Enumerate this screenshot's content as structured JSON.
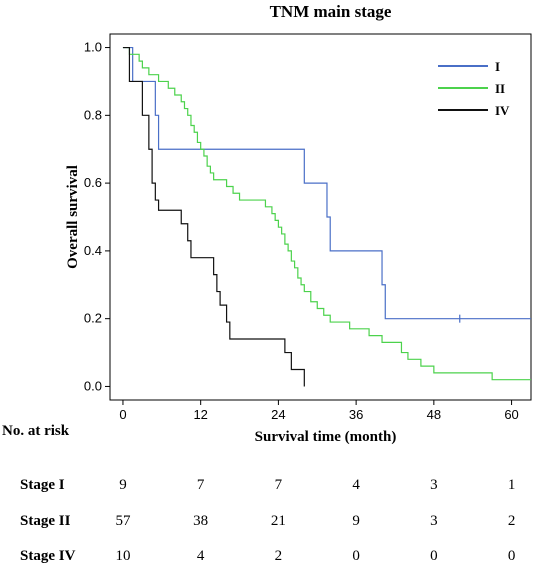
{
  "chart_data": {
    "type": "line",
    "subtype": "kaplan-meier",
    "title": "TNM main stage",
    "xlabel": "Survival time (month)",
    "ylabel": "Overall survival",
    "xlim": [
      -2,
      63
    ],
    "ylim": [
      -0.04,
      1.04
    ],
    "xticks": [
      0,
      12,
      24,
      36,
      48,
      60
    ],
    "yticks": [
      0.0,
      0.2,
      0.4,
      0.6,
      0.8,
      1.0
    ],
    "grid": false,
    "legend_position": "top-right",
    "series": [
      {
        "name": "I",
        "color": "#4a6fc7",
        "steps": [
          [
            0,
            1.0
          ],
          [
            1.5,
            0.9
          ],
          [
            5,
            0.8
          ],
          [
            5.5,
            0.7
          ],
          [
            28,
            0.6
          ],
          [
            31.5,
            0.5
          ],
          [
            32,
            0.4
          ],
          [
            40,
            0.3
          ],
          [
            40.5,
            0.2
          ],
          [
            63,
            0.2
          ]
        ],
        "censored": [
          [
            52,
            0.2
          ]
        ]
      },
      {
        "name": "II",
        "color": "#4cd24c",
        "steps": [
          [
            0,
            1.0
          ],
          [
            1,
            0.98
          ],
          [
            2.5,
            0.96
          ],
          [
            3,
            0.94
          ],
          [
            4,
            0.92
          ],
          [
            5.5,
            0.9
          ],
          [
            7,
            0.88
          ],
          [
            8,
            0.86
          ],
          [
            9,
            0.84
          ],
          [
            9.5,
            0.82
          ],
          [
            10,
            0.8
          ],
          [
            10.5,
            0.77
          ],
          [
            11,
            0.75
          ],
          [
            11.5,
            0.72
          ],
          [
            12,
            0.7
          ],
          [
            12.5,
            0.68
          ],
          [
            13,
            0.65
          ],
          [
            13.5,
            0.63
          ],
          [
            14,
            0.61
          ],
          [
            16,
            0.59
          ],
          [
            17,
            0.57
          ],
          [
            18,
            0.55
          ],
          [
            22,
            0.53
          ],
          [
            23,
            0.51
          ],
          [
            23.5,
            0.49
          ],
          [
            24,
            0.47
          ],
          [
            24.5,
            0.45
          ],
          [
            25,
            0.42
          ],
          [
            25.5,
            0.4
          ],
          [
            26,
            0.37
          ],
          [
            26.5,
            0.35
          ],
          [
            27,
            0.32
          ],
          [
            27.5,
            0.3
          ],
          [
            28,
            0.28
          ],
          [
            29,
            0.25
          ],
          [
            30,
            0.23
          ],
          [
            31,
            0.21
          ],
          [
            32,
            0.19
          ],
          [
            35,
            0.17
          ],
          [
            38,
            0.15
          ],
          [
            40,
            0.13
          ],
          [
            43,
            0.1
          ],
          [
            44,
            0.08
          ],
          [
            46,
            0.06
          ],
          [
            48,
            0.04
          ],
          [
            57,
            0.02
          ],
          [
            63,
            0.02
          ]
        ],
        "censored": []
      },
      {
        "name": "IV",
        "color": "#111111",
        "steps": [
          [
            0,
            1.0
          ],
          [
            1,
            0.9
          ],
          [
            3,
            0.8
          ],
          [
            4,
            0.7
          ],
          [
            4.5,
            0.6
          ],
          [
            5,
            0.55
          ],
          [
            5.5,
            0.52
          ],
          [
            9,
            0.48
          ],
          [
            10,
            0.43
          ],
          [
            10.5,
            0.38
          ],
          [
            14,
            0.33
          ],
          [
            14.5,
            0.28
          ],
          [
            15,
            0.24
          ],
          [
            16,
            0.19
          ],
          [
            16.5,
            0.14
          ],
          [
            25,
            0.1
          ],
          [
            26,
            0.05
          ],
          [
            28,
            0.0
          ]
        ],
        "censored": []
      }
    ]
  },
  "risk_table": {
    "header": "No. at risk",
    "rows": [
      {
        "label": "Stage I",
        "values": [
          "9",
          "7",
          "7",
          "4",
          "3",
          "1"
        ]
      },
      {
        "label": "Stage II",
        "values": [
          "57",
          "38",
          "21",
          "9",
          "3",
          "2"
        ]
      },
      {
        "label": "Stage IV",
        "values": [
          "10",
          "4",
          "2",
          "0",
          "0",
          "0"
        ]
      }
    ]
  }
}
